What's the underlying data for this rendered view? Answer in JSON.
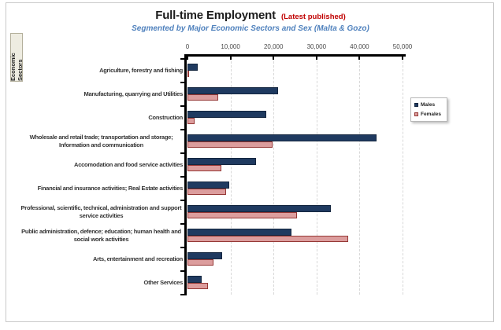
{
  "header": {
    "title": "Full-time Employment",
    "title_suffix": "(Latest published)",
    "subtitle": "Segmented by Major Economic Sectors and Sex (Malta & Gozo)"
  },
  "chart_data": {
    "type": "bar",
    "orientation": "horizontal",
    "title": "Full-time Employment",
    "title_note": "(Latest published)",
    "subtitle": "Segmented by Major Economic Sectors and Sex (Malta & Gozo)",
    "ylabel": "Economic Sectors",
    "xlim": [
      0,
      50000
    ],
    "x_ticks": [
      0,
      10000,
      20000,
      30000,
      40000,
      50000
    ],
    "x_tick_labels": [
      "0",
      "10,000",
      "20,000",
      "30,000",
      "40,000",
      "50,000"
    ],
    "grid": "vertical-dashed",
    "legend_position": "right",
    "categories": [
      "Agriculture, forestry and fishing",
      "Manufacturing, quarrying and Utilities",
      "Construction",
      "Wholesale and retail trade; transportation and storage; Information and communication",
      "Accomodation and food service activities",
      "Financial and insurance activities; Real Estate activities",
      "Professional, scientific, technical, administration and support service activities",
      "Public administration, defence; education; human health and social work activities",
      "Arts, entertainment and recreation",
      "Other Services"
    ],
    "series": [
      {
        "name": "Males",
        "color": "#1f3a60",
        "border_color": "#14263f",
        "values": [
          2400,
          21000,
          18400,
          44000,
          16000,
          9700,
          33300,
          24200,
          8100,
          3300
        ]
      },
      {
        "name": "Females",
        "color": "#dc9d9d",
        "border_color": "#953735",
        "values": [
          300,
          7100,
          1600,
          19700,
          7800,
          9000,
          25500,
          37300,
          6000,
          4700
        ]
      }
    ]
  }
}
